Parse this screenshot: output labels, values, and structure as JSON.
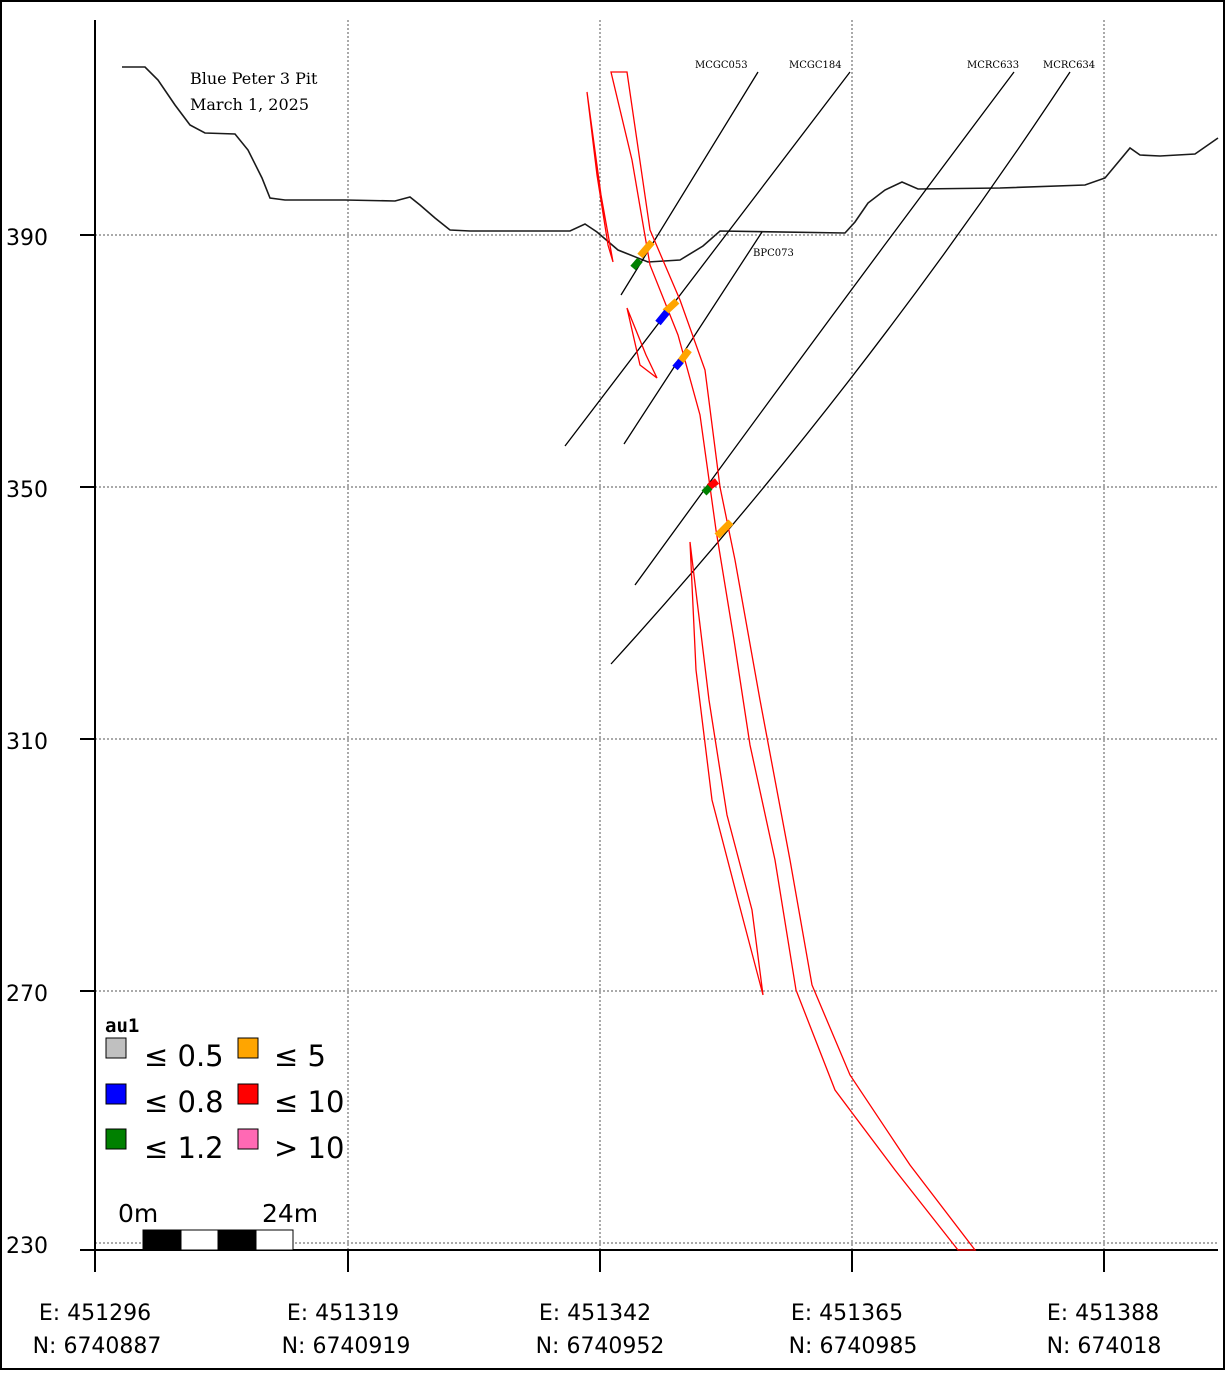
{
  "title": {
    "line1": "Blue Peter 3 Pit",
    "line2": "March 1, 2025"
  },
  "holes": {
    "mcgc053": "MCGC053",
    "mcgc184": "MCGC184",
    "mcrc633": "MCRC633",
    "mcrc634": "MCRC634",
    "bpc073": "BPC073"
  },
  "y_axis": {
    "ticks": [
      "390",
      "350",
      "310",
      "270",
      "230"
    ]
  },
  "x_axis": {
    "ticks": [
      {
        "e": "E: 451296",
        "n": "N: 6740887"
      },
      {
        "e": "E: 451319",
        "n": "N: 6740919"
      },
      {
        "e": "E: 451342",
        "n": "N: 6740952"
      },
      {
        "e": "E: 451365",
        "n": "N: 6740985"
      },
      {
        "e": "E: 451388",
        "n": "N: 674018"
      }
    ]
  },
  "legend": {
    "title": "au1",
    "items": [
      {
        "label": "≤ 0.5",
        "color": "#c0c0c0"
      },
      {
        "label": "≤ 0.8",
        "color": "#0000ff"
      },
      {
        "label": "≤ 1.2",
        "color": "#008000"
      },
      {
        "label": "≤ 5",
        "color": "#ffa500"
      },
      {
        "label": "≤ 10",
        "color": "#ff0000"
      },
      {
        "label": "> 10",
        "color": "#ff69b4"
      }
    ]
  },
  "scale_bar": {
    "start_label": "0m",
    "end_label": "24m"
  },
  "colors": {
    "topography": "#1a1a1a",
    "orebody_outline": "#ff0000",
    "drillhole": "#000000"
  }
}
